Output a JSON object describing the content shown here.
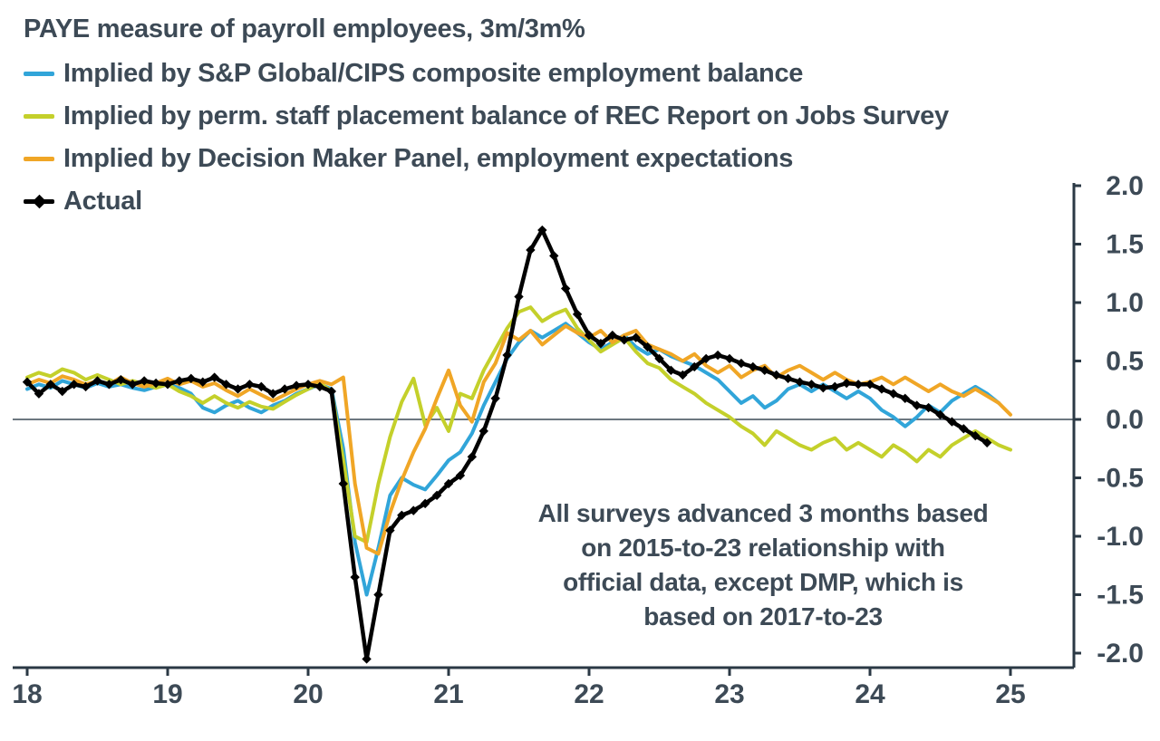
{
  "colors": {
    "text": "#3D4A56",
    "axis": "#2B3945",
    "zero_line": "#3D4A56",
    "background": "#FFFFFF"
  },
  "chart_data": {
    "type": "line",
    "title": "PAYE measure of payroll employees, 3m/3m%",
    "xlabel": "",
    "ylabel": "",
    "xlim": [
      2018,
      2025.45
    ],
    "ylim": [
      -2.0,
      2.0
    ],
    "grid": false,
    "legend_position": "top-left",
    "y_axis_side": "right",
    "x_ticks": [
      {
        "v": 2018,
        "label": "18"
      },
      {
        "v": 2019,
        "label": "19"
      },
      {
        "v": 2020,
        "label": "20"
      },
      {
        "v": 2021,
        "label": "21"
      },
      {
        "v": 2022,
        "label": "22"
      },
      {
        "v": 2023,
        "label": "23"
      },
      {
        "v": 2024,
        "label": "24"
      },
      {
        "v": 2025,
        "label": "25"
      }
    ],
    "y_ticks": [
      {
        "v": 2.0,
        "label": "2.0"
      },
      {
        "v": 1.5,
        "label": "1.5"
      },
      {
        "v": 1.0,
        "label": "1.0"
      },
      {
        "v": 0.5,
        "label": "0.5"
      },
      {
        "v": 0.0,
        "label": "0.0"
      },
      {
        "v": -0.5,
        "label": "-0.5"
      },
      {
        "v": -1.0,
        "label": "-1.0"
      },
      {
        "v": -1.5,
        "label": "-1.5"
      },
      {
        "v": -2.0,
        "label": "-2.0"
      }
    ],
    "annotation": {
      "lines": [
        "All surveys advanced 3 months based",
        "on 2015-to-23 relationship with",
        "official data, except DMP, which is",
        "based on 2017-to-23"
      ]
    },
    "x_unit": "decimal year, monthly observations",
    "series": [
      {
        "name": "Implied by S&P Global/CIPS composite employment balance",
        "color": "#31A5D9",
        "width": 4,
        "markers": "none",
        "x_start": 2018.0,
        "x_step": 0.0833333,
        "values": [
          0.26,
          0.3,
          0.27,
          0.33,
          0.3,
          0.27,
          0.31,
          0.28,
          0.3,
          0.27,
          0.25,
          0.28,
          0.3,
          0.27,
          0.22,
          0.1,
          0.06,
          0.12,
          0.16,
          0.1,
          0.06,
          0.12,
          0.16,
          0.22,
          0.26,
          0.3,
          0.26,
          -0.25,
          -1.05,
          -1.5,
          -1.1,
          -0.65,
          -0.5,
          -0.56,
          -0.6,
          -0.48,
          -0.35,
          -0.28,
          -0.12,
          0.12,
          0.32,
          0.52,
          0.66,
          0.76,
          0.7,
          0.76,
          0.82,
          0.74,
          0.66,
          0.6,
          0.66,
          0.72,
          0.62,
          0.56,
          0.6,
          0.54,
          0.5,
          0.46,
          0.4,
          0.34,
          0.24,
          0.14,
          0.2,
          0.1,
          0.16,
          0.26,
          0.3,
          0.24,
          0.3,
          0.24,
          0.18,
          0.24,
          0.18,
          0.08,
          0.02,
          -0.06,
          0.02,
          0.12,
          0.06,
          0.16,
          0.22,
          0.28,
          0.22,
          0.14
        ]
      },
      {
        "name": "Implied by perm. staff placement balance of REC Report on Jobs Survey",
        "color": "#C4D02B",
        "width": 4,
        "markers": "none",
        "x_start": 2018.0,
        "x_step": 0.0833333,
        "values": [
          0.36,
          0.4,
          0.37,
          0.43,
          0.4,
          0.34,
          0.38,
          0.34,
          0.3,
          0.33,
          0.3,
          0.27,
          0.3,
          0.24,
          0.2,
          0.14,
          0.2,
          0.14,
          0.1,
          0.15,
          0.11,
          0.09,
          0.15,
          0.21,
          0.26,
          0.31,
          0.24,
          -0.35,
          -1.0,
          -1.05,
          -0.55,
          -0.15,
          0.15,
          0.35,
          -0.05,
          0.1,
          -0.1,
          0.22,
          0.18,
          0.42,
          0.6,
          0.78,
          0.92,
          0.96,
          0.84,
          0.9,
          0.94,
          0.78,
          0.68,
          0.58,
          0.64,
          0.7,
          0.58,
          0.48,
          0.44,
          0.34,
          0.28,
          0.22,
          0.14,
          0.08,
          0.02,
          -0.06,
          -0.12,
          -0.22,
          -0.1,
          -0.16,
          -0.22,
          -0.26,
          -0.2,
          -0.16,
          -0.26,
          -0.2,
          -0.26,
          -0.32,
          -0.22,
          -0.28,
          -0.36,
          -0.26,
          -0.32,
          -0.22,
          -0.16,
          -0.1,
          -0.16,
          -0.22,
          -0.26
        ]
      },
      {
        "name": "Implied by Decision Maker Panel, employment expectations",
        "color": "#F0A626",
        "width": 4,
        "markers": "none",
        "x_start": 2018.0,
        "x_step": 0.0833333,
        "values": [
          0.3,
          0.34,
          0.31,
          0.37,
          0.34,
          0.3,
          0.33,
          0.3,
          0.36,
          0.31,
          0.28,
          0.31,
          0.35,
          0.3,
          0.33,
          0.28,
          0.31,
          0.25,
          0.2,
          0.26,
          0.21,
          0.16,
          0.21,
          0.26,
          0.3,
          0.33,
          0.3,
          0.36,
          -0.55,
          -1.1,
          -1.15,
          -0.8,
          -0.52,
          -0.28,
          -0.08,
          0.18,
          0.42,
          0.12,
          -0.02,
          0.32,
          0.48,
          0.74,
          0.68,
          0.76,
          0.64,
          0.72,
          0.8,
          0.74,
          0.7,
          0.76,
          0.66,
          0.72,
          0.76,
          0.64,
          0.6,
          0.56,
          0.5,
          0.56,
          0.46,
          0.4,
          0.46,
          0.36,
          0.42,
          0.46,
          0.36,
          0.42,
          0.46,
          0.4,
          0.34,
          0.4,
          0.34,
          0.3,
          0.32,
          0.36,
          0.3,
          0.36,
          0.3,
          0.24,
          0.3,
          0.24,
          0.2,
          0.26,
          0.2,
          0.14,
          0.04
        ]
      },
      {
        "name": "Actual",
        "color": "#000000",
        "width": 4.5,
        "markers": "diamond",
        "x_start": 2018.0,
        "x_step": 0.0833333,
        "values": [
          0.32,
          0.22,
          0.3,
          0.24,
          0.3,
          0.28,
          0.33,
          0.3,
          0.34,
          0.3,
          0.33,
          0.31,
          0.3,
          0.33,
          0.35,
          0.32,
          0.36,
          0.3,
          0.26,
          0.3,
          0.28,
          0.22,
          0.26,
          0.29,
          0.3,
          0.28,
          0.24,
          -0.55,
          -1.35,
          -2.05,
          -1.5,
          -0.95,
          -0.82,
          -0.78,
          -0.72,
          -0.65,
          -0.55,
          -0.48,
          -0.32,
          -0.1,
          0.18,
          0.55,
          1.05,
          1.45,
          1.62,
          1.4,
          1.12,
          0.9,
          0.72,
          0.65,
          0.72,
          0.68,
          0.7,
          0.62,
          0.52,
          0.42,
          0.38,
          0.45,
          0.52,
          0.55,
          0.52,
          0.48,
          0.45,
          0.42,
          0.38,
          0.35,
          0.32,
          0.3,
          0.27,
          0.28,
          0.31,
          0.3,
          0.3,
          0.26,
          0.22,
          0.18,
          0.12,
          0.1,
          0.04,
          -0.02,
          -0.08,
          -0.14,
          -0.2
        ]
      }
    ]
  }
}
